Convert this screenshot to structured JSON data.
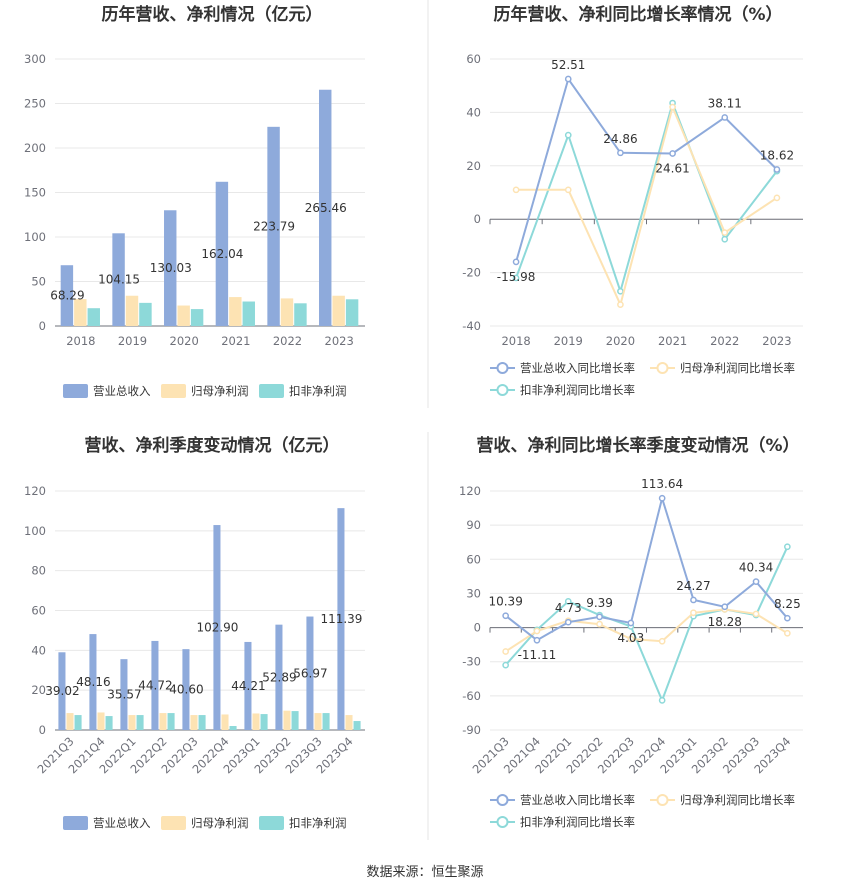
{
  "colors": {
    "revenue": "#8eaadb",
    "netprofit": "#fde3b3",
    "deducted": "#8dd9d9",
    "revenue_line": "#8eaadb",
    "netprofit_line": "#fde3b3",
    "deducted_line": "#8dd9d9"
  },
  "source_text": "数据来源：恒生聚源",
  "chart_data": [
    {
      "type": "bar",
      "title": "历年营收、净利情况（亿元）",
      "categories": [
        "2018",
        "2019",
        "2020",
        "2021",
        "2022",
        "2023"
      ],
      "ylim": [
        0,
        300
      ],
      "yticks": [
        0,
        50,
        100,
        150,
        200,
        250,
        300
      ],
      "series": [
        {
          "name": "营业总收入",
          "values": [
            68.29,
            104.15,
            130.03,
            162.04,
            223.79,
            265.46
          ],
          "labels": [
            "68.29",
            "104.15",
            "130.03",
            "162.04",
            "223.79",
            "265.46"
          ]
        },
        {
          "name": "归母净利润",
          "values": [
            30.2,
            34.0,
            23.0,
            32.5,
            31.0,
            34.0
          ]
        },
        {
          "name": "扣非净利润",
          "values": [
            20.0,
            26.0,
            19.0,
            27.5,
            25.5,
            30.0
          ]
        }
      ]
    },
    {
      "type": "line",
      "title": "历年营收、净利同比增长率情况（%）",
      "categories": [
        "2018",
        "2019",
        "2020",
        "2021",
        "2022",
        "2023"
      ],
      "ylim": [
        -40,
        60
      ],
      "yticks": [
        -40,
        -20,
        0,
        20,
        40,
        60
      ],
      "series": [
        {
          "name": "营业总收入同比增长率",
          "values": [
            -15.98,
            52.51,
            24.86,
            24.61,
            38.11,
            18.62
          ],
          "labels": [
            "-15.98",
            "52.51",
            "24.86",
            "24.61",
            "38.11",
            "18.62"
          ]
        },
        {
          "name": "归母净利润同比增长率",
          "values": [
            11.0,
            11.0,
            -32.0,
            42.0,
            -5.0,
            8.0
          ]
        },
        {
          "name": "扣非净利润同比增长率",
          "values": [
            -22.0,
            31.5,
            -27.0,
            43.5,
            -7.5,
            18.0
          ]
        }
      ]
    },
    {
      "type": "bar",
      "title": "营收、净利季度变动情况（亿元）",
      "categories": [
        "2021Q3",
        "2021Q4",
        "2022Q1",
        "2022Q2",
        "2022Q3",
        "2022Q4",
        "2023Q1",
        "2023Q2",
        "2023Q3",
        "2023Q4"
      ],
      "ylim": [
        0,
        120
      ],
      "yticks": [
        0,
        20,
        40,
        60,
        80,
        100,
        120
      ],
      "series": [
        {
          "name": "营业总收入",
          "values": [
            39.02,
            48.16,
            35.57,
            44.72,
            40.6,
            102.9,
            44.21,
            52.89,
            56.97,
            111.39
          ],
          "labels": [
            "39.02",
            "48.16",
            "35.57",
            "44.72",
            "40.60",
            "102.90",
            "44.21",
            "52.89",
            "56.97",
            "111.39"
          ]
        },
        {
          "name": "归母净利润",
          "values": [
            8.5,
            8.8,
            7.5,
            8.5,
            7.5,
            7.8,
            8.3,
            9.7,
            8.5,
            7.5
          ]
        },
        {
          "name": "扣非净利润",
          "values": [
            7.5,
            7.0,
            7.5,
            8.5,
            7.5,
            2.0,
            8.0,
            9.5,
            8.5,
            4.5
          ]
        }
      ]
    },
    {
      "type": "line",
      "title": "营收、净利同比增长率季度变动情况（%）",
      "categories": [
        "2021Q3",
        "2021Q4",
        "2022Q1",
        "2022Q2",
        "2022Q3",
        "2022Q4",
        "2023Q1",
        "2023Q2",
        "2023Q3",
        "2023Q4"
      ],
      "ylim": [
        -90,
        120
      ],
      "yticks": [
        -90,
        -60,
        -30,
        0,
        30,
        60,
        90,
        120
      ],
      "series": [
        {
          "name": "营业总收入同比增长率",
          "values": [
            10.39,
            -11.11,
            4.73,
            9.39,
            4.03,
            113.64,
            24.27,
            18.28,
            40.34,
            8.25
          ],
          "labels": [
            "10.39",
            "-11.11",
            "4.73",
            "9.39",
            "4.03",
            "113.64",
            "24.27",
            "18.28",
            "40.34",
            "8.25"
          ]
        },
        {
          "name": "归母净利润同比增长率",
          "values": [
            -21.0,
            -3.0,
            6.0,
            3.0,
            -10.0,
            -12.0,
            13.0,
            16.0,
            12.0,
            -5.0
          ]
        },
        {
          "name": "扣非净利润同比增长率",
          "values": [
            -33.0,
            -2.0,
            23.0,
            11.0,
            1.0,
            -64.0,
            10.0,
            16.0,
            11.0,
            71.0
          ]
        }
      ]
    }
  ]
}
